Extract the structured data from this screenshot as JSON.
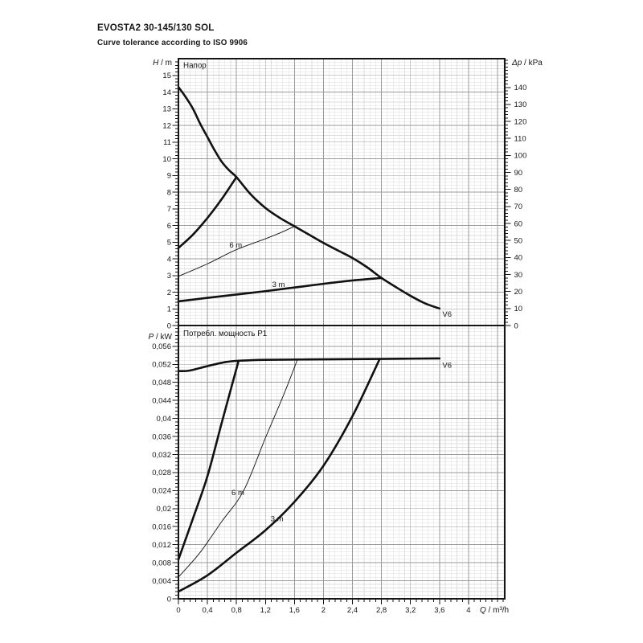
{
  "header": {
    "title": "EVOSTA2 30-145/130 SOL",
    "subtitle": "Curve tolerance according to ISO 9906"
  },
  "colors": {
    "ink": "#161616",
    "curve": "#111111",
    "grid_minor": "#dedede",
    "grid_major": "#9b9b9b",
    "background": "#ffffff"
  },
  "chart_data": {
    "type": "line",
    "grid": "on",
    "x_axis": {
      "var": "Q",
      "unit": "m³/h",
      "min": 0,
      "max": 4.5,
      "major": 0.4,
      "minor": 0.08,
      "ticks": [
        {
          "v": 0,
          "label": "0"
        },
        {
          "v": 0.4,
          "label": "0,4"
        },
        {
          "v": 0.8,
          "label": "0,8"
        },
        {
          "v": 1.2,
          "label": "1,2"
        },
        {
          "v": 1.6,
          "label": "1,6"
        },
        {
          "v": 2,
          "label": "2"
        },
        {
          "v": 2.4,
          "label": "2,4"
        },
        {
          "v": 2.8,
          "label": "2,8"
        },
        {
          "v": 3.2,
          "label": "3,2"
        },
        {
          "v": 3.6,
          "label": "3,6"
        },
        {
          "v": 4,
          "label": "4"
        }
      ]
    },
    "panels": [
      {
        "name": "head",
        "title": "Напор",
        "y_axis": {
          "var": "H",
          "unit": "m",
          "min": 0,
          "max": 16,
          "label_max": 15,
          "major": 1,
          "minor": 0.2,
          "ticks": [
            {
              "v": 0,
              "label": "0"
            },
            {
              "v": 1,
              "label": "1"
            },
            {
              "v": 2,
              "label": "2"
            },
            {
              "v": 3,
              "label": "3"
            },
            {
              "v": 4,
              "label": "4"
            },
            {
              "v": 5,
              "label": "5"
            },
            {
              "v": 6,
              "label": "6"
            },
            {
              "v": 7,
              "label": "7"
            },
            {
              "v": 8,
              "label": "8"
            },
            {
              "v": 9,
              "label": "9"
            },
            {
              "v": 10,
              "label": "10"
            },
            {
              "v": 11,
              "label": "11"
            },
            {
              "v": 12,
              "label": "12"
            },
            {
              "v": 13,
              "label": "13"
            },
            {
              "v": 14,
              "label": "14"
            },
            {
              "v": 15,
              "label": "15"
            }
          ]
        },
        "y2_axis": {
          "var": "Δp",
          "unit": "kPa",
          "kpa_per_m": 9.80665,
          "major": 10,
          "minor": 2,
          "ticks": [
            {
              "v": 0,
              "label": "0"
            },
            {
              "v": 10,
              "label": "10"
            },
            {
              "v": 20,
              "label": "20"
            },
            {
              "v": 30,
              "label": "30"
            },
            {
              "v": 40,
              "label": "40"
            },
            {
              "v": 50,
              "label": "50"
            },
            {
              "v": 60,
              "label": "60"
            },
            {
              "v": 70,
              "label": "70"
            },
            {
              "v": 80,
              "label": "80"
            },
            {
              "v": 90,
              "label": "90"
            },
            {
              "v": 100,
              "label": "100"
            },
            {
              "v": 110,
              "label": "110"
            },
            {
              "v": 120,
              "label": "120"
            },
            {
              "v": 130,
              "label": "130"
            },
            {
              "v": 140,
              "label": "140"
            }
          ]
        },
        "series": [
          {
            "name": "v6-max-curve",
            "width": 2.6,
            "points": [
              [
                0,
                14.3
              ],
              [
                0.1,
                13.7
              ],
              [
                0.2,
                13.0
              ],
              [
                0.3,
                12.1
              ],
              [
                0.4,
                11.3
              ],
              [
                0.5,
                10.5
              ],
              [
                0.6,
                9.8
              ],
              [
                0.7,
                9.3
              ],
              [
                0.8,
                8.9
              ],
              [
                1.0,
                7.85
              ],
              [
                1.2,
                7.05
              ],
              [
                1.4,
                6.45
              ],
              [
                1.6,
                5.95
              ],
              [
                1.8,
                5.45
              ],
              [
                2.0,
                4.95
              ],
              [
                2.2,
                4.5
              ],
              [
                2.4,
                4.05
              ],
              [
                2.6,
                3.5
              ],
              [
                2.8,
                2.85
              ],
              [
                3.0,
                2.3
              ],
              [
                3.2,
                1.78
              ],
              [
                3.4,
                1.33
              ],
              [
                3.6,
                1.02
              ]
            ]
          },
          {
            "name": "rising-curve",
            "width": 2.6,
            "points": [
              [
                0,
                4.65
              ],
              [
                0.2,
                5.45
              ],
              [
                0.4,
                6.45
              ],
              [
                0.6,
                7.6
              ],
              [
                0.8,
                8.9
              ]
            ]
          },
          {
            "name": "setpoint-6m-curve",
            "width": 0.9,
            "points": [
              [
                0,
                2.95
              ],
              [
                0.4,
                3.7
              ],
              [
                0.8,
                4.55
              ],
              [
                1.2,
                5.2
              ],
              [
                1.4,
                5.55
              ],
              [
                1.6,
                5.95
              ]
            ]
          },
          {
            "name": "setpoint-3m-curve",
            "width": 2.6,
            "points": [
              [
                0,
                1.45
              ],
              [
                0.4,
                1.66
              ],
              [
                0.8,
                1.86
              ],
              [
                1.2,
                2.06
              ],
              [
                1.6,
                2.28
              ],
              [
                2.0,
                2.5
              ],
              [
                2.4,
                2.7
              ],
              [
                2.8,
                2.85
              ]
            ]
          }
        ],
        "annotations": [
          {
            "text": "6 m",
            "x": 0.79,
            "y": 4.67,
            "anchor": "middle"
          },
          {
            "text": "3 m",
            "x": 1.38,
            "y": 2.31,
            "anchor": "middle"
          },
          {
            "text": "V6",
            "x": 3.64,
            "y": 0.52,
            "anchor": "start"
          }
        ]
      },
      {
        "name": "power",
        "title": "Потребл. мощность P1",
        "y_axis": {
          "var": "P",
          "unit": "kW",
          "min": 0,
          "max": 0.0606,
          "label_max": 0.056,
          "major": 0.004,
          "minor": 0.0008,
          "ticks": [
            {
              "v": 0,
              "label": "0"
            },
            {
              "v": 0.004,
              "label": "0,004"
            },
            {
              "v": 0.008,
              "label": "0,008"
            },
            {
              "v": 0.012,
              "label": "0,012"
            },
            {
              "v": 0.016,
              "label": "0,016"
            },
            {
              "v": 0.02,
              "label": "0,02"
            },
            {
              "v": 0.024,
              "label": "0,024"
            },
            {
              "v": 0.028,
              "label": "0,028"
            },
            {
              "v": 0.032,
              "label": "0,032"
            },
            {
              "v": 0.036,
              "label": "0,036"
            },
            {
              "v": 0.04,
              "label": "0,04"
            },
            {
              "v": 0.044,
              "label": "0,044"
            },
            {
              "v": 0.048,
              "label": "0,048"
            },
            {
              "v": 0.052,
              "label": "0,052"
            },
            {
              "v": 0.056,
              "label": "0,056"
            }
          ]
        },
        "series": [
          {
            "name": "v6-power-curve",
            "width": 2.6,
            "points": [
              [
                0,
                0.0505
              ],
              [
                0.15,
                0.0506
              ],
              [
                0.4,
                0.0516
              ],
              [
                0.65,
                0.0525
              ],
              [
                0.85,
                0.0528
              ],
              [
                1.2,
                0.053
              ],
              [
                2.0,
                0.0531
              ],
              [
                2.8,
                0.0532
              ],
              [
                3.6,
                0.0533
              ]
            ]
          },
          {
            "name": "rising-power-curve",
            "width": 2.6,
            "points": [
              [
                0,
                0.0087
              ],
              [
                0.2,
                0.0178
              ],
              [
                0.4,
                0.0272
              ],
              [
                0.6,
                0.0392
              ],
              [
                0.83,
                0.0528
              ]
            ]
          },
          {
            "name": "power-6m-curve",
            "width": 0.9,
            "points": [
              [
                0,
                0.0048
              ],
              [
                0.3,
                0.0103
              ],
              [
                0.6,
                0.0172
              ],
              [
                0.9,
                0.024
              ],
              [
                1.2,
                0.0357
              ],
              [
                1.45,
                0.0452
              ],
              [
                1.64,
                0.053
              ]
            ]
          },
          {
            "name": "power-3m-curve",
            "width": 2.6,
            "points": [
              [
                0,
                0.0016
              ],
              [
                0.4,
                0.0052
              ],
              [
                0.8,
                0.0102
              ],
              [
                1.2,
                0.0152
              ],
              [
                1.6,
                0.0215
              ],
              [
                2.0,
                0.0295
              ],
              [
                2.4,
                0.0405
              ],
              [
                2.77,
                0.053
              ]
            ]
          }
        ],
        "annotations": [
          {
            "text": "6 m",
            "x": 0.82,
            "y": 0.023,
            "anchor": "middle"
          },
          {
            "text": "3 m",
            "x": 1.36,
            "y": 0.0172,
            "anchor": "middle"
          },
          {
            "text": "V6",
            "x": 3.64,
            "y": 0.0512,
            "anchor": "start"
          }
        ]
      }
    ]
  }
}
